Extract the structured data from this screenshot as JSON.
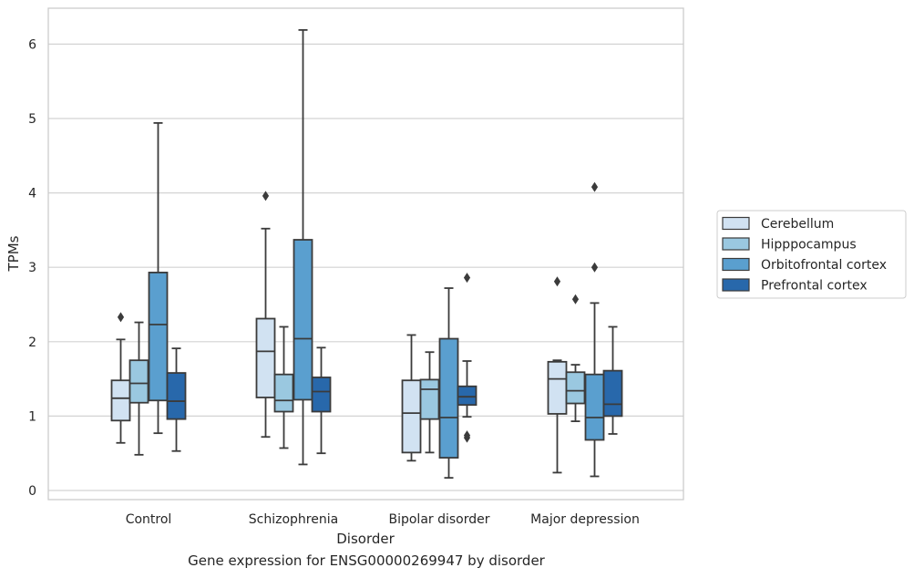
{
  "caption": "Gene expression for ENSG00000269947 by disorder",
  "chart_data": {
    "type": "boxplot",
    "xlabel": "Disorder",
    "ylabel": "TPMs",
    "ylim": [
      -0.12,
      6.55
    ],
    "yticks": [
      0,
      1,
      2,
      3,
      4,
      5,
      6
    ],
    "grid": "horizontal",
    "legend_position": "right",
    "categories": [
      "Control",
      "Schizophrenia",
      "Bipolar disorder",
      "Major depression"
    ],
    "series": [
      {
        "name": "Cerebellum",
        "color": "#d1e2f2",
        "boxes": [
          {
            "whislo": 0.64,
            "q1": 0.94,
            "med": 1.24,
            "q3": 1.48,
            "whishi": 2.03,
            "fliers": [
              2.33
            ]
          },
          {
            "whislo": 0.72,
            "q1": 1.25,
            "med": 1.87,
            "q3": 2.31,
            "whishi": 3.52,
            "fliers": [
              3.96
            ]
          },
          {
            "whislo": 0.4,
            "q1": 0.51,
            "med": 1.04,
            "q3": 1.48,
            "whishi": 2.09,
            "fliers": []
          },
          {
            "whislo": 0.24,
            "q1": 1.03,
            "med": 1.5,
            "q3": 1.73,
            "whishi": 1.75,
            "fliers": [
              2.81
            ]
          }
        ]
      },
      {
        "name": "Hipppocampus",
        "color": "#9ac8e0",
        "boxes": [
          {
            "whislo": 0.48,
            "q1": 1.18,
            "med": 1.44,
            "q3": 1.75,
            "whishi": 2.26,
            "fliers": []
          },
          {
            "whislo": 0.57,
            "q1": 1.06,
            "med": 1.21,
            "q3": 1.56,
            "whishi": 2.2,
            "fliers": []
          },
          {
            "whislo": 0.51,
            "q1": 0.96,
            "med": 1.36,
            "q3": 1.49,
            "whishi": 1.86,
            "fliers": []
          },
          {
            "whislo": 0.93,
            "q1": 1.17,
            "med": 1.34,
            "q3": 1.59,
            "whishi": 1.69,
            "fliers": [
              2.57
            ]
          }
        ]
      },
      {
        "name": "Orbitofrontal cortex",
        "color": "#5a9fcf",
        "boxes": [
          {
            "whislo": 0.77,
            "q1": 1.21,
            "med": 2.23,
            "q3": 2.93,
            "whishi": 4.94,
            "fliers": []
          },
          {
            "whislo": 0.35,
            "q1": 1.22,
            "med": 2.04,
            "q3": 3.37,
            "whishi": 6.19,
            "fliers": []
          },
          {
            "whislo": 0.17,
            "q1": 0.44,
            "med": 0.98,
            "q3": 2.04,
            "whishi": 2.72,
            "fliers": []
          },
          {
            "whislo": 0.19,
            "q1": 0.68,
            "med": 0.98,
            "q3": 1.56,
            "whishi": 2.52,
            "fliers": [
              3.0,
              4.08
            ]
          }
        ]
      },
      {
        "name": "Prefrontal cortex",
        "color": "#2868ab",
        "boxes": [
          {
            "whislo": 0.53,
            "q1": 0.96,
            "med": 1.2,
            "q3": 1.58,
            "whishi": 1.91,
            "fliers": []
          },
          {
            "whislo": 0.5,
            "q1": 1.06,
            "med": 1.33,
            "q3": 1.52,
            "whishi": 1.92,
            "fliers": []
          },
          {
            "whislo": 0.99,
            "q1": 1.15,
            "med": 1.26,
            "q3": 1.4,
            "whishi": 1.74,
            "fliers": [
              0.71,
              0.74,
              2.86
            ]
          },
          {
            "whislo": 0.76,
            "q1": 1.0,
            "med": 1.16,
            "q3": 1.61,
            "whishi": 2.2,
            "fliers": []
          }
        ]
      }
    ]
  }
}
